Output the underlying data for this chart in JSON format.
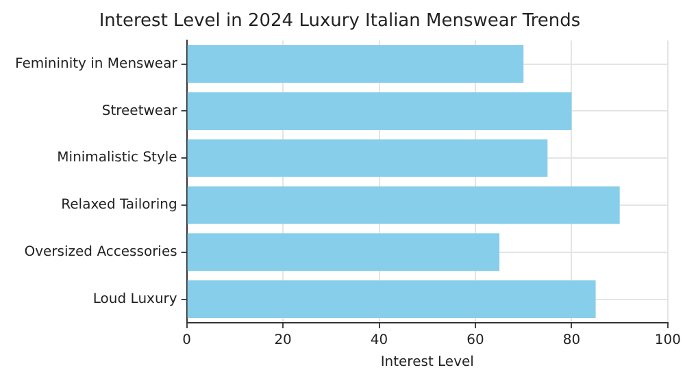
{
  "chart_data": {
    "type": "bar",
    "orientation": "horizontal",
    "title": "Interest Level in 2024 Luxury Italian Menswear Trends",
    "xlabel": "Interest Level",
    "categories": [
      "Femininity in Menswear",
      "Streetwear",
      "Minimalistic Style",
      "Relaxed Tailoring",
      "Oversized Accessories",
      "Loud Luxury"
    ],
    "values": [
      70,
      80,
      75,
      90,
      65,
      85
    ],
    "color": "#87ceeb",
    "xlim": [
      0,
      100
    ],
    "xticks": [
      0,
      20,
      40,
      60,
      80,
      100
    ],
    "grid": true
  }
}
